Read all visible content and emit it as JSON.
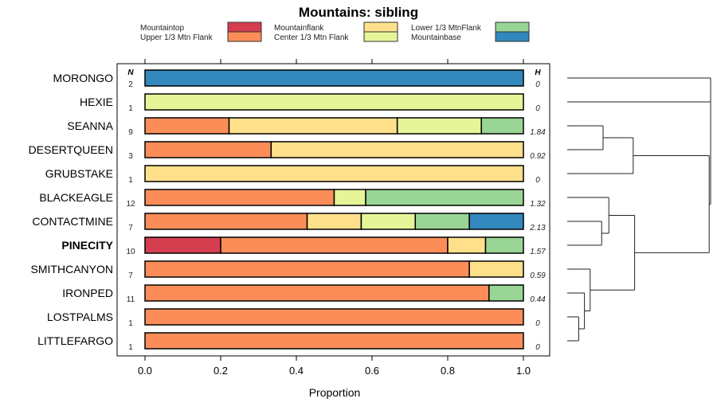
{
  "chart_data": {
    "type": "bar",
    "subtype": "stacked-proportion-horizontal-with-dendrogram",
    "title": "Mountains: sibling",
    "xlabel": "Proportion",
    "xlim": [
      0,
      1
    ],
    "xticks": [
      "0.0",
      "0.2",
      "0.4",
      "0.6",
      "0.8",
      "1.0"
    ],
    "n_header": "N",
    "h_header": "H",
    "legend_placement": "top",
    "series": [
      {
        "name": "Mountaintop",
        "color": "#D53E4F"
      },
      {
        "name": "Upper 1/3 Mtn Flank",
        "color": "#FC8D59"
      },
      {
        "name": "Mountainflank",
        "color": "#FEE08B"
      },
      {
        "name": "Center 1/3 Mtn Flank",
        "color": "#E6F598"
      },
      {
        "name": "Lower 1/3 MtnFlank",
        "color": "#99D594"
      },
      {
        "name": "Mountainbase",
        "color": "#3288BD"
      }
    ],
    "categories": [
      {
        "label": "MORONGO",
        "bold": false,
        "n": "2",
        "h": "0",
        "counts": [
          0,
          0,
          0,
          0,
          0,
          2
        ]
      },
      {
        "label": "HEXIE",
        "bold": false,
        "n": "1",
        "h": "0",
        "counts": [
          0,
          0,
          0,
          1,
          0,
          0
        ]
      },
      {
        "label": "SEANNA",
        "bold": false,
        "n": "9",
        "h": "1.84",
        "counts": [
          0,
          2,
          4,
          2,
          1,
          0
        ]
      },
      {
        "label": "DESERTQUEEN",
        "bold": false,
        "n": "3",
        "h": "0.92",
        "counts": [
          0,
          1,
          2,
          0,
          0,
          0
        ]
      },
      {
        "label": "GRUBSTAKE",
        "bold": false,
        "n": "1",
        "h": "0",
        "counts": [
          0,
          0,
          1,
          0,
          0,
          0
        ]
      },
      {
        "label": "BLACKEAGLE",
        "bold": false,
        "n": "12",
        "h": "1.32",
        "counts": [
          0,
          6,
          0,
          1,
          5,
          0
        ]
      },
      {
        "label": "CONTACTMINE",
        "bold": false,
        "n": "7",
        "h": "2.13",
        "counts": [
          0,
          3,
          1,
          1,
          1,
          1
        ]
      },
      {
        "label": "PINECITY",
        "bold": true,
        "n": "10",
        "h": "1.57",
        "counts": [
          2,
          6,
          1,
          0,
          1,
          0
        ]
      },
      {
        "label": "SMITHCANYON",
        "bold": false,
        "n": "7",
        "h": "0.59",
        "counts": [
          0,
          6,
          1,
          0,
          0,
          0
        ]
      },
      {
        "label": "IRONPED",
        "bold": false,
        "n": "11",
        "h": "0.44",
        "counts": [
          0,
          10,
          0,
          0,
          1,
          0
        ]
      },
      {
        "label": "LOSTPALMS",
        "bold": false,
        "n": "1",
        "h": "0",
        "counts": [
          0,
          1,
          0,
          0,
          0,
          0
        ]
      },
      {
        "label": "LITTLEFARGO",
        "bold": false,
        "n": "1",
        "h": "0",
        "counts": [
          0,
          1,
          0,
          0,
          0,
          0
        ]
      }
    ],
    "dendrogram": {
      "merges": [
        {
          "id": "a",
          "children": [
            10,
            11
          ],
          "height": 0.08
        },
        {
          "id": "b",
          "children": [
            9,
            "a"
          ],
          "height": 0.12
        },
        {
          "id": "c",
          "children": [
            8,
            "b"
          ],
          "height": 0.16
        },
        {
          "id": "d",
          "children": [
            6,
            7
          ],
          "height": 0.24
        },
        {
          "id": "e",
          "children": [
            5,
            "d"
          ],
          "height": 0.29
        },
        {
          "id": "f",
          "children": [
            "e",
            "c"
          ],
          "height": 0.47
        },
        {
          "id": "g",
          "children": [
            2,
            3
          ],
          "height": 0.25
        },
        {
          "id": "h",
          "children": [
            4,
            "g"
          ],
          "height": 0.46
        },
        {
          "id": "i",
          "children": [
            "h",
            "f"
          ],
          "height": 0.99
        },
        {
          "id": "root",
          "children": [
            0,
            1,
            "i"
          ],
          "height": 1.0
        }
      ]
    }
  }
}
